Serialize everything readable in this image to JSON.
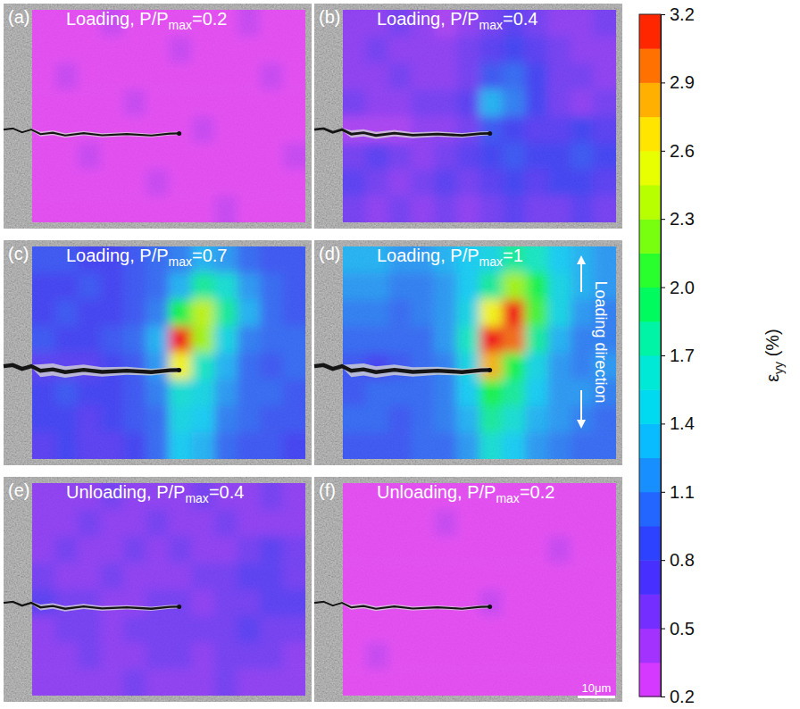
{
  "chart_data": {
    "type": "heatmap",
    "panels": [
      {
        "label": "(a)",
        "title": [
          "Loading, P/P",
          "max",
          "=0.2"
        ],
        "cells": [
          [
            0.2,
            0.2,
            0.2,
            0.3,
            0.2,
            0.2,
            0.2,
            0.2,
            0.2,
            0.3,
            0.2,
            0.2
          ],
          [
            0.2,
            0.2,
            0.2,
            0.2,
            0.2,
            0.2,
            0.3,
            0.2,
            0.2,
            0.2,
            0.2,
            0.2
          ],
          [
            0.2,
            0.3,
            0.2,
            0.2,
            0.2,
            0.2,
            0.2,
            0.2,
            0.2,
            0.2,
            0.3,
            0.2
          ],
          [
            0.2,
            0.2,
            0.2,
            0.2,
            0.3,
            0.2,
            0.2,
            0.2,
            0.2,
            0.2,
            0.2,
            0.2
          ],
          [
            0.2,
            0.2,
            0.2,
            0.2,
            0.2,
            0.2,
            0.2,
            0.3,
            0.2,
            0.2,
            0.2,
            0.2
          ],
          [
            0.2,
            0.2,
            0.3,
            0.2,
            0.2,
            0.2,
            0.2,
            0.2,
            0.2,
            0.2,
            0.2,
            0.3
          ],
          [
            0.2,
            0.2,
            0.2,
            0.2,
            0.2,
            0.3,
            0.2,
            0.2,
            0.2,
            0.2,
            0.2,
            0.2
          ],
          [
            0.2,
            0.2,
            0.2,
            0.2,
            0.2,
            0.2,
            0.2,
            0.2,
            0.3,
            0.2,
            0.2,
            0.2
          ]
        ]
      },
      {
        "label": "(b)",
        "title": [
          "Loading, P/P",
          "max",
          "=0.4"
        ],
        "cells": [
          [
            0.5,
            0.5,
            0.6,
            0.5,
            0.4,
            0.5,
            0.6,
            0.7,
            0.6,
            0.5,
            0.5,
            0.6
          ],
          [
            0.5,
            0.6,
            0.5,
            0.5,
            0.5,
            0.6,
            0.7,
            0.8,
            0.7,
            0.6,
            0.5,
            0.5
          ],
          [
            0.5,
            0.5,
            0.6,
            0.5,
            0.5,
            0.6,
            0.9,
            1.0,
            0.8,
            0.6,
            0.6,
            0.5
          ],
          [
            0.6,
            0.5,
            0.5,
            0.6,
            0.6,
            0.7,
            1.3,
            1.1,
            0.8,
            0.6,
            0.5,
            0.6
          ],
          [
            0.4,
            0.4,
            0.4,
            0.5,
            0.5,
            0.6,
            0.9,
            0.8,
            0.7,
            0.7,
            0.8,
            0.7
          ],
          [
            0.6,
            0.7,
            0.6,
            0.5,
            0.6,
            0.7,
            0.8,
            0.9,
            0.8,
            0.8,
            0.9,
            0.8
          ],
          [
            0.7,
            0.6,
            0.5,
            0.6,
            0.7,
            0.6,
            0.7,
            0.8,
            0.7,
            0.8,
            0.8,
            0.7
          ],
          [
            0.6,
            0.5,
            0.6,
            0.5,
            0.6,
            0.5,
            0.6,
            0.7,
            0.6,
            0.6,
            0.7,
            0.6
          ]
        ]
      },
      {
        "label": "(c)",
        "title": [
          "Loading, P/P",
          "max",
          "=0.7"
        ],
        "cells": [
          [
            0.9,
            0.9,
            0.8,
            0.8,
            0.9,
            1.0,
            1.1,
            1.3,
            1.2,
            1.0,
            0.9,
            0.9
          ],
          [
            0.8,
            0.8,
            0.9,
            0.8,
            0.9,
            1.0,
            1.3,
            1.8,
            1.6,
            1.2,
            1.0,
            0.9
          ],
          [
            0.8,
            0.9,
            0.8,
            0.8,
            0.9,
            1.1,
            2.0,
            2.4,
            1.8,
            1.3,
            1.0,
            0.9
          ],
          [
            0.9,
            0.8,
            0.8,
            0.9,
            1.0,
            1.3,
            3.2,
            2.3,
            1.5,
            1.1,
            1.0,
            1.0
          ],
          [
            0.7,
            0.7,
            0.7,
            0.8,
            0.9,
            1.2,
            2.6,
            1.7,
            1.3,
            1.0,
            0.9,
            1.0
          ],
          [
            0.8,
            0.9,
            0.8,
            0.8,
            0.9,
            1.1,
            1.6,
            1.5,
            1.2,
            1.0,
            1.0,
            0.9
          ],
          [
            0.8,
            0.8,
            0.7,
            0.8,
            0.9,
            1.0,
            1.5,
            1.4,
            1.1,
            1.0,
            0.9,
            0.9
          ],
          [
            0.7,
            0.8,
            0.7,
            0.7,
            0.8,
            1.0,
            1.4,
            1.3,
            1.0,
            0.9,
            0.9,
            0.8
          ]
        ]
      },
      {
        "label": "(d)",
        "title": [
          "Loading, P/P",
          "max",
          "=1"
        ],
        "annotation": "Loading direction",
        "cells": [
          [
            1.3,
            1.3,
            1.2,
            1.2,
            1.3,
            1.4,
            1.5,
            1.8,
            1.7,
            1.4,
            1.3,
            1.2
          ],
          [
            1.2,
            1.2,
            1.1,
            1.1,
            1.2,
            1.4,
            1.8,
            2.3,
            2.0,
            1.5,
            1.3,
            1.2
          ],
          [
            1.1,
            1.1,
            1.0,
            1.1,
            1.2,
            1.5,
            2.6,
            3.2,
            2.1,
            1.5,
            1.2,
            1.1
          ],
          [
            1.0,
            1.0,
            1.0,
            1.0,
            1.2,
            1.7,
            3.2,
            3.0,
            1.8,
            1.3,
            1.1,
            1.1
          ],
          [
            0.9,
            0.8,
            0.9,
            1.0,
            1.1,
            1.5,
            2.8,
            2.0,
            1.5,
            1.2,
            1.1,
            1.2
          ],
          [
            0.9,
            1.0,
            1.0,
            1.0,
            1.1,
            1.4,
            2.0,
            1.8,
            1.4,
            1.2,
            1.2,
            1.1
          ],
          [
            1.0,
            1.0,
            0.9,
            1.0,
            1.1,
            1.3,
            1.8,
            1.6,
            1.3,
            1.2,
            1.1,
            1.0
          ],
          [
            0.9,
            0.9,
            0.9,
            1.0,
            1.0,
            1.2,
            1.6,
            1.4,
            1.2,
            1.1,
            1.0,
            1.0
          ]
        ]
      },
      {
        "label": "(e)",
        "title": [
          "Unloading, P/P",
          "max",
          "=0.4"
        ],
        "cells": [
          [
            0.5,
            0.5,
            0.5,
            0.6,
            0.5,
            0.5,
            0.5,
            0.6,
            0.5,
            0.5,
            0.6,
            0.5
          ],
          [
            0.5,
            0.5,
            0.6,
            0.5,
            0.5,
            0.6,
            0.5,
            0.5,
            0.6,
            0.5,
            0.5,
            0.5
          ],
          [
            0.5,
            0.6,
            0.5,
            0.5,
            0.6,
            0.5,
            0.6,
            0.5,
            0.5,
            0.6,
            0.7,
            0.6
          ],
          [
            0.6,
            0.5,
            0.5,
            0.6,
            0.5,
            0.5,
            0.5,
            0.6,
            0.6,
            0.7,
            0.7,
            0.6
          ],
          [
            0.7,
            0.6,
            0.6,
            0.5,
            0.5,
            0.6,
            0.6,
            0.5,
            0.6,
            0.6,
            0.7,
            0.7
          ],
          [
            0.5,
            0.6,
            0.6,
            0.5,
            0.6,
            0.6,
            0.6,
            0.6,
            0.6,
            0.7,
            0.6,
            0.6
          ],
          [
            0.5,
            0.5,
            0.6,
            0.5,
            0.5,
            0.6,
            0.6,
            0.5,
            0.6,
            0.6,
            0.6,
            0.5
          ],
          [
            0.5,
            0.5,
            0.5,
            0.5,
            0.6,
            0.5,
            0.5,
            0.5,
            0.6,
            0.5,
            0.5,
            0.5
          ]
        ]
      },
      {
        "label": "(f)",
        "title": [
          "Unloading, P/P",
          "max",
          "=0.2"
        ],
        "scale_bar": "10μm",
        "cells": [
          [
            0.2,
            0.2,
            0.2,
            0.2,
            0.2,
            0.2,
            0.2,
            0.2,
            0.2,
            0.2,
            0.2,
            0.2
          ],
          [
            0.2,
            0.2,
            0.2,
            0.2,
            0.3,
            0.2,
            0.2,
            0.2,
            0.2,
            0.2,
            0.2,
            0.2
          ],
          [
            0.2,
            0.2,
            0.2,
            0.2,
            0.2,
            0.2,
            0.2,
            0.2,
            0.2,
            0.3,
            0.2,
            0.2
          ],
          [
            0.2,
            0.2,
            0.2,
            0.2,
            0.2,
            0.2,
            0.2,
            0.2,
            0.2,
            0.2,
            0.2,
            0.2
          ],
          [
            0.2,
            0.2,
            0.2,
            0.2,
            0.2,
            0.2,
            0.3,
            0.2,
            0.2,
            0.2,
            0.2,
            0.2
          ],
          [
            0.2,
            0.2,
            0.2,
            0.2,
            0.2,
            0.2,
            0.2,
            0.2,
            0.2,
            0.2,
            0.2,
            0.2
          ],
          [
            0.2,
            0.3,
            0.2,
            0.2,
            0.2,
            0.2,
            0.2,
            0.2,
            0.2,
            0.2,
            0.2,
            0.2
          ],
          [
            0.2,
            0.2,
            0.2,
            0.2,
            0.2,
            0.2,
            0.2,
            0.2,
            0.2,
            0.2,
            0.2,
            0.2
          ]
        ]
      }
    ],
    "colorbar": {
      "range": [
        0.2,
        3.2
      ],
      "ticks": [
        0.2,
        0.5,
        0.8,
        1.1,
        1.4,
        1.7,
        {
          "value": 2,
          "label": "2.0"
        },
        2.3,
        2.6,
        2.9,
        3.2
      ],
      "label": [
        "ε",
        "yy",
        " (%)"
      ]
    }
  }
}
